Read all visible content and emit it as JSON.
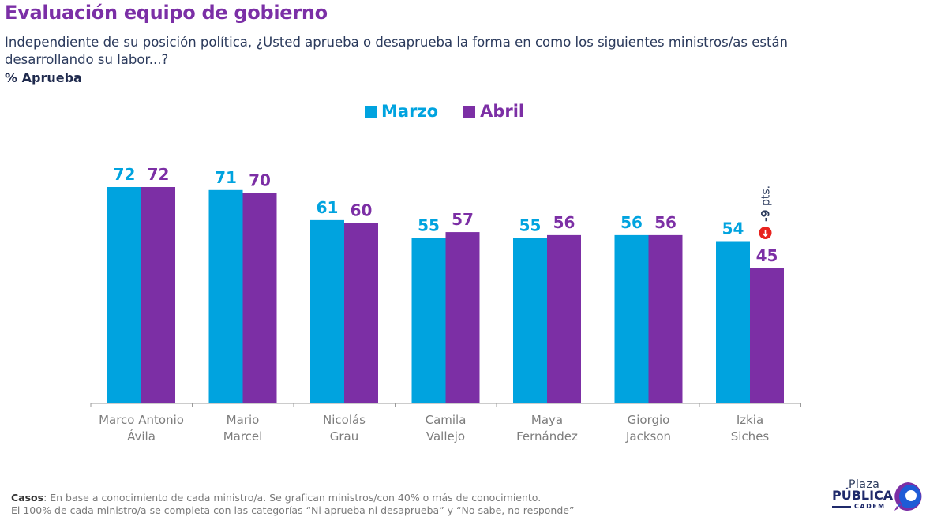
{
  "header": {
    "title": "Evaluación equipo de gobierno",
    "question": "Independiente de su posición política, ¿Usted aprueba o desaprueba la forma en como los siguientes ministros/as están desarrollando su labor...?",
    "unit_label": "% Aprueba"
  },
  "colors": {
    "marzo": "#00a3df",
    "abril": "#7c2fa5",
    "title": "#7b2fa6",
    "change_badge": "#e8231f"
  },
  "chart_data": {
    "type": "bar",
    "title": "Evaluación equipo de gobierno",
    "ylabel": "% Aprueba",
    "xlabel": "",
    "ylim": [
      0,
      72
    ],
    "grid": false,
    "legend_position": "top-center",
    "categories": [
      [
        "Marco Antonio",
        "Ávila"
      ],
      [
        "Mario",
        "Marcel"
      ],
      [
        "Nicolás",
        "Grau"
      ],
      [
        "Camila",
        "Vallejo"
      ],
      [
        "Maya",
        "Fernández"
      ],
      [
        "Giorgio",
        "Jackson"
      ],
      [
        "Izkia",
        "Siches"
      ]
    ],
    "series": [
      {
        "name": "Marzo",
        "values": [
          72,
          71,
          61,
          55,
          55,
          56,
          54
        ]
      },
      {
        "name": "Abril",
        "values": [
          72,
          70,
          60,
          57,
          56,
          56,
          45
        ]
      }
    ],
    "annotations": [
      {
        "category_index": 6,
        "series": "Abril",
        "value_text": "-9",
        "suffix_text": " pts.",
        "icon": "down-arrow-icon"
      }
    ]
  },
  "footnote": {
    "label": "Casos",
    "line1": ": En base a conocimiento de cada ministro/a. Se grafican ministros/con 40% o más de conocimiento.",
    "line2": "El 100% de cada ministro/a se completa con las categorías “Ni aprueba ni desaprueba” y “No sabe, no responde”"
  },
  "logo": {
    "line1": "Plaza",
    "line2": "PÚBLICA",
    "line3": "CADEM"
  }
}
